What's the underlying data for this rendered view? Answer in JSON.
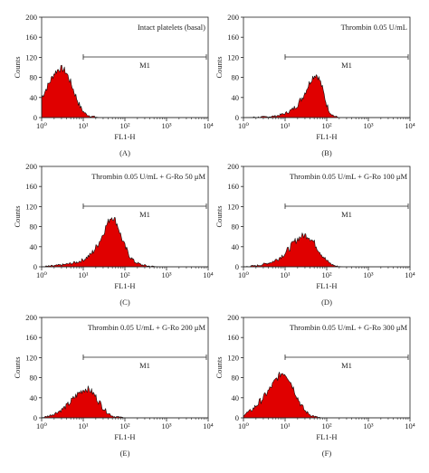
{
  "chart_data": [
    {
      "type": "area",
      "panel_label": "(A)",
      "annotation": "Intact platelets (basal)",
      "gate_label": "M1",
      "gate_range": [
        10,
        10000
      ],
      "xlabel": "FL1-H",
      "ylabel": "Counts",
      "xscale": "log",
      "xlim": [
        1,
        10000
      ],
      "ylim": [
        0,
        200
      ],
      "x_ticks": [
        1,
        10,
        100,
        1000,
        10000
      ],
      "x_tick_labels": [
        "10⁰",
        "10¹",
        "10²",
        "10³",
        "10⁴"
      ],
      "y_ticks": [
        0,
        40,
        80,
        120,
        160,
        200
      ],
      "y_tick_labels": [
        "0",
        "40",
        "80",
        "120",
        "160",
        "200"
      ],
      "histogram": {
        "x": [
          1,
          1.5,
          2,
          2.5,
          3,
          3.5,
          4,
          5,
          6,
          7,
          8,
          9,
          10,
          12,
          15,
          20,
          25
        ],
        "y": [
          40,
          68,
          88,
          96,
          98,
          95,
          88,
          70,
          52,
          38,
          26,
          18,
          12,
          6,
          3,
          1,
          0
        ]
      },
      "fill_color": "#e00000"
    },
    {
      "type": "area",
      "panel_label": "(B)",
      "annotation": "Thrombin 0.05 U/mL",
      "gate_label": "M1",
      "gate_range": [
        10,
        10000
      ],
      "xlabel": "FL1-H",
      "ylabel": "Counts",
      "xscale": "log",
      "xlim": [
        1,
        10000
      ],
      "ylim": [
        0,
        200
      ],
      "x_ticks": [
        1,
        10,
        100,
        1000,
        10000
      ],
      "x_tick_labels": [
        "10⁰",
        "10¹",
        "10²",
        "10³",
        "10⁴"
      ],
      "y_ticks": [
        0,
        40,
        80,
        120,
        160,
        200
      ],
      "y_tick_labels": [
        "0",
        "40",
        "80",
        "120",
        "160",
        "200"
      ],
      "histogram": {
        "x": [
          1,
          3,
          6,
          10,
          15,
          20,
          25,
          30,
          35,
          40,
          45,
          50,
          55,
          60,
          70,
          80,
          90,
          100,
          120,
          150,
          200
        ],
        "y": [
          0,
          1,
          3,
          8,
          16,
          26,
          38,
          50,
          62,
          72,
          80,
          84,
          86,
          84,
          72,
          56,
          40,
          26,
          10,
          3,
          0
        ]
      },
      "fill_color": "#e00000"
    },
    {
      "type": "area",
      "panel_label": "(C)",
      "annotation": "Thrombin 0.05 U/mL + G-Ro 50 μM",
      "gate_label": "M1",
      "gate_range": [
        10,
        10000
      ],
      "xlabel": "FL1-H",
      "ylabel": "Counts",
      "xscale": "log",
      "xlim": [
        1,
        10000
      ],
      "ylim": [
        0,
        200
      ],
      "x_ticks": [
        1,
        10,
        100,
        1000,
        10000
      ],
      "x_tick_labels": [
        "10⁰",
        "10¹",
        "10²",
        "10³",
        "10⁴"
      ],
      "y_ticks": [
        0,
        40,
        80,
        120,
        160,
        200
      ],
      "y_tick_labels": [
        "0",
        "40",
        "80",
        "120",
        "160",
        "200"
      ],
      "histogram": {
        "x": [
          1,
          2,
          4,
          7,
          10,
          15,
          20,
          25,
          30,
          35,
          40,
          45,
          50,
          60,
          70,
          80,
          100,
          130,
          170,
          250,
          400,
          700
        ],
        "y": [
          0,
          2,
          5,
          9,
          14,
          24,
          38,
          52,
          66,
          80,
          90,
          98,
          100,
          92,
          78,
          62,
          40,
          22,
          10,
          4,
          1,
          0
        ]
      },
      "fill_color": "#e00000"
    },
    {
      "type": "area",
      "panel_label": "(D)",
      "annotation": "Thrombin 0.05 U/mL + G-Ro 100 μM",
      "gate_label": "M1",
      "gate_range": [
        10,
        10000
      ],
      "xlabel": "FL1-H",
      "ylabel": "Counts",
      "xscale": "log",
      "xlim": [
        1,
        10000
      ],
      "ylim": [
        0,
        200
      ],
      "x_ticks": [
        1,
        10,
        100,
        1000,
        10000
      ],
      "x_tick_labels": [
        "10⁰",
        "10¹",
        "10²",
        "10³",
        "10⁴"
      ],
      "y_ticks": [
        0,
        40,
        80,
        120,
        160,
        200
      ],
      "y_tick_labels": [
        "0",
        "40",
        "80",
        "120",
        "160",
        "200"
      ],
      "histogram": {
        "x": [
          1,
          2,
          3,
          5,
          7,
          10,
          13,
          16,
          20,
          25,
          30,
          35,
          40,
          50,
          60,
          80,
          100,
          130,
          170,
          250
        ],
        "y": [
          0,
          2,
          5,
          10,
          17,
          27,
          38,
          48,
          56,
          61,
          63,
          62,
          58,
          48,
          38,
          22,
          12,
          5,
          1,
          0
        ]
      },
      "fill_color": "#e00000"
    },
    {
      "type": "area",
      "panel_label": "(E)",
      "annotation": "Thrombin 0.05 U/mL + G-Ro 200 μM",
      "gate_label": "M1",
      "gate_range": [
        10,
        10000
      ],
      "xlabel": "FL1-H",
      "ylabel": "Counts",
      "xscale": "log",
      "xlim": [
        1,
        10000
      ],
      "ylim": [
        0,
        200
      ],
      "x_ticks": [
        1,
        10,
        100,
        1000,
        10000
      ],
      "x_tick_labels": [
        "10⁰",
        "10¹",
        "10²",
        "10³",
        "10⁴"
      ],
      "y_ticks": [
        0,
        40,
        80,
        120,
        160,
        200
      ],
      "y_tick_labels": [
        "0",
        "40",
        "80",
        "120",
        "160",
        "200"
      ],
      "histogram": {
        "x": [
          1,
          1.5,
          2,
          3,
          4,
          5,
          6,
          8,
          10,
          12,
          14,
          16,
          20,
          25,
          30,
          40,
          50,
          60,
          80,
          100
        ],
        "y": [
          0,
          4,
          8,
          16,
          24,
          32,
          40,
          50,
          56,
          58,
          56,
          52,
          42,
          30,
          20,
          9,
          4,
          2,
          1,
          0
        ]
      },
      "fill_color": "#e00000"
    },
    {
      "type": "area",
      "panel_label": "(F)",
      "annotation": "Thrombin 0.05 U/mL + G-Ro 300 μM",
      "gate_label": "M1",
      "gate_range": [
        10,
        10000
      ],
      "xlabel": "FL1-H",
      "ylabel": "Counts",
      "xscale": "log",
      "xlim": [
        1,
        10000
      ],
      "ylim": [
        0,
        200
      ],
      "x_ticks": [
        1,
        10,
        100,
        1000,
        10000
      ],
      "x_tick_labels": [
        "10⁰",
        "10¹",
        "10²",
        "10³",
        "10⁴"
      ],
      "y_ticks": [
        0,
        40,
        80,
        120,
        160,
        200
      ],
      "y_tick_labels": [
        "0",
        "40",
        "80",
        "120",
        "160",
        "200"
      ],
      "histogram": {
        "x": [
          1,
          1.5,
          2,
          3,
          4,
          5,
          6,
          7,
          8,
          9,
          10,
          12,
          15,
          20,
          25,
          30,
          40,
          50,
          60,
          80
        ],
        "y": [
          6,
          14,
          24,
          40,
          54,
          66,
          76,
          83,
          88,
          90,
          88,
          80,
          64,
          40,
          24,
          14,
          6,
          3,
          1,
          0
        ]
      },
      "fill_color": "#e00000"
    }
  ]
}
